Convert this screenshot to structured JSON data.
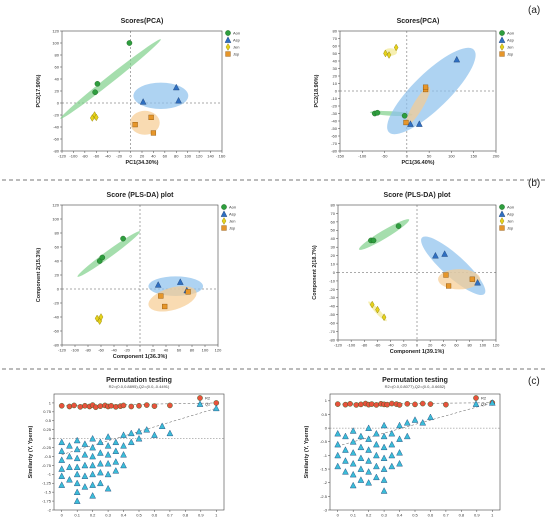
{
  "panel_labels": [
    "(a)",
    "(b)",
    "(c)"
  ],
  "colors": {
    "Aon": "#2e9e3e",
    "Asp": "#2f6fc1",
    "Jen": "#e6d21a",
    "Jsp": "#e6962a",
    "R2": "#e8523c",
    "Q2": "#3bbcd8",
    "ellipse_Aon": "#7fd08a",
    "ellipse_Asp": "#8cc0ec",
    "ellipse_Jen": "#f2e890",
    "ellipse_Jsp": "#f6cc92",
    "divider": "#777777"
  },
  "chart_data": [
    {
      "type": "scatter",
      "title": "Scores(PCA)",
      "xlabel": "PC1(34.30%)",
      "ylabel": "PC2(17.90%)",
      "xlim": [
        -120,
        160
      ],
      "ylim": [
        -80,
        120
      ],
      "xticks": [
        -120,
        -100,
        -80,
        -60,
        -40,
        -20,
        0,
        20,
        40,
        60,
        80,
        100,
        120,
        140,
        160
      ],
      "yticks": [
        -80,
        -60,
        -40,
        -20,
        0,
        20,
        40,
        60,
        80,
        100,
        120
      ],
      "legend": "top-right",
      "series": [
        {
          "name": "Aon",
          "marker": "circle",
          "points": [
            [
              -62,
              18
            ],
            [
              -58,
              32
            ],
            [
              -2,
              100
            ]
          ]
        },
        {
          "name": "Asp",
          "marker": "triangle",
          "points": [
            [
              22,
              2
            ],
            [
              80,
              26
            ],
            [
              84,
              4
            ]
          ]
        },
        {
          "name": "Jen",
          "marker": "diamond",
          "points": [
            [
              -67,
              -25
            ],
            [
              -63,
              -20
            ],
            [
              -60,
              -24
            ]
          ]
        },
        {
          "name": "Jsp",
          "marker": "square",
          "points": [
            [
              8,
              -36
            ],
            [
              36,
              -24
            ],
            [
              40,
              -50
            ]
          ]
        }
      ]
    },
    {
      "type": "scatter",
      "title": "Scores(PCA)",
      "xlabel": "PC1(36.40%)",
      "ylabel": "PC2(18.90%)",
      "xlim": [
        -150,
        200
      ],
      "ylim": [
        -80,
        80
      ],
      "xticks": [
        -150,
        -100,
        -50,
        0,
        50,
        100,
        150,
        200
      ],
      "yticks": [
        -80,
        -70,
        -60,
        -50,
        -40,
        -30,
        -20,
        -10,
        0,
        10,
        20,
        30,
        40,
        50,
        60,
        70,
        80
      ],
      "legend": "top-right",
      "series": [
        {
          "name": "Aon",
          "marker": "circle",
          "points": [
            [
              -72,
              -30
            ],
            [
              -66,
              -29
            ],
            [
              -5,
              -33
            ]
          ]
        },
        {
          "name": "Asp",
          "marker": "triangle",
          "points": [
            [
              8,
              -44
            ],
            [
              28,
              -44
            ],
            [
              112,
              42
            ]
          ]
        },
        {
          "name": "Jen",
          "marker": "diamond",
          "points": [
            [
              -48,
              50
            ],
            [
              -40,
              48
            ],
            [
              -24,
              58
            ]
          ]
        },
        {
          "name": "Jsp",
          "marker": "square",
          "points": [
            [
              -2,
              -42
            ],
            [
              42,
              2
            ],
            [
              42,
              5
            ]
          ]
        }
      ]
    },
    {
      "type": "scatter",
      "title": "Score (PLS-DA) plot",
      "xlabel": "Component 1(36.3%)",
      "ylabel": "Component 2(15.3%)",
      "xlim": [
        -120,
        120
      ],
      "ylim": [
        -80,
        120
      ],
      "xticks": [
        -120,
        -100,
        -80,
        -60,
        -40,
        -20,
        0,
        20,
        40,
        60,
        80,
        100,
        120
      ],
      "yticks": [
        -80,
        -60,
        -40,
        -20,
        0,
        20,
        40,
        60,
        80,
        100,
        120
      ],
      "legend": "top-right",
      "series": [
        {
          "name": "Aon",
          "marker": "circle",
          "points": [
            [
              -62,
              40
            ],
            [
              -58,
              45
            ],
            [
              -26,
              72
            ]
          ]
        },
        {
          "name": "Asp",
          "marker": "triangle",
          "points": [
            [
              28,
              6
            ],
            [
              62,
              10
            ],
            [
              72,
              -2
            ]
          ]
        },
        {
          "name": "Jen",
          "marker": "diamond",
          "points": [
            [
              -66,
              -42
            ],
            [
              -62,
              -46
            ],
            [
              -60,
              -40
            ]
          ]
        },
        {
          "name": "Jsp",
          "marker": "square",
          "points": [
            [
              32,
              -10
            ],
            [
              38,
              -25
            ],
            [
              74,
              -4
            ]
          ]
        }
      ]
    },
    {
      "type": "scatter",
      "title": "Score (PLS-DA) plot",
      "xlabel": "Component 1(39.1%)",
      "ylabel": "Component 2(18.7%)",
      "xlim": [
        -120,
        120
      ],
      "ylim": [
        -80,
        80
      ],
      "xticks": [
        -120,
        -100,
        -80,
        -60,
        -40,
        -20,
        0,
        20,
        40,
        60,
        80,
        100,
        120
      ],
      "yticks": [
        -80,
        -70,
        -60,
        -50,
        -40,
        -30,
        -20,
        -10,
        0,
        10,
        20,
        30,
        40,
        50,
        60,
        70,
        80
      ],
      "legend": "top-right",
      "series": [
        {
          "name": "Aon",
          "marker": "circle",
          "points": [
            [
              -70,
              38
            ],
            [
              -66,
              38
            ],
            [
              -28,
              55
            ]
          ]
        },
        {
          "name": "Asp",
          "marker": "triangle",
          "points": [
            [
              28,
              20
            ],
            [
              42,
              22
            ],
            [
              92,
              -12
            ]
          ]
        },
        {
          "name": "Jen",
          "marker": "diamond",
          "points": [
            [
              -68,
              -38
            ],
            [
              -60,
              -44
            ],
            [
              -50,
              -53
            ]
          ]
        },
        {
          "name": "Jsp",
          "marker": "square",
          "points": [
            [
              44,
              -3
            ],
            [
              48,
              -16
            ],
            [
              84,
              -8
            ]
          ]
        }
      ]
    },
    {
      "type": "scatter",
      "title": "Permutation testing",
      "subtitle": "R2=(0.0,0.8895),Q2=(0.0,-0.4491)",
      "ylabel": "Similarity (Y, Yperm)",
      "xlim": [
        -0.05,
        1.05
      ],
      "ylim": [
        -2.0,
        1.25
      ],
      "xticks": [
        0,
        0.1,
        0.2,
        0.3,
        0.4,
        0.5,
        0.6,
        0.7,
        0.8,
        0.9,
        1
      ],
      "yticks": [
        -2,
        -1.75,
        -1.5,
        -1.25,
        -1,
        -0.75,
        -0.5,
        -0.25,
        0,
        0.25,
        0.5,
        0.75,
        1
      ],
      "legend": "top-right",
      "series": [
        {
          "name": "R2",
          "marker": "circle",
          "x": [
            0,
            0.05,
            0.08,
            0.12,
            0.15,
            0.18,
            0.2,
            0.22,
            0.25,
            0.28,
            0.3,
            0.32,
            0.35,
            0.38,
            0.4,
            0.45,
            0.5,
            0.55,
            0.6,
            0.7,
            1
          ],
          "y": [
            0.92,
            0.9,
            0.93,
            0.89,
            0.92,
            0.9,
            0.94,
            0.88,
            0.91,
            0.93,
            0.9,
            0.92,
            0.89,
            0.91,
            0.93,
            0.9,
            0.92,
            0.94,
            0.91,
            0.93,
            1.0
          ]
        },
        {
          "name": "Q2",
          "marker": "triangle",
          "x": [
            0,
            0,
            0,
            0,
            0,
            0,
            0.05,
            0.05,
            0.05,
            0.05,
            0.1,
            0.1,
            0.1,
            0.1,
            0.1,
            0.1,
            0.1,
            0.1,
            0.15,
            0.15,
            0.15,
            0.15,
            0.15,
            0.2,
            0.2,
            0.2,
            0.2,
            0.2,
            0.2,
            0.2,
            0.25,
            0.25,
            0.25,
            0.25,
            0.25,
            0.3,
            0.3,
            0.3,
            0.3,
            0.3,
            0.3,
            0.35,
            0.35,
            0.35,
            0.35,
            0.4,
            0.4,
            0.4,
            0.4,
            0.45,
            0.45,
            0.5,
            0.5,
            0.55,
            0.6,
            0.65,
            0.7,
            1
          ],
          "y": [
            -0.1,
            -0.35,
            -0.6,
            -0.85,
            -1.05,
            -1.3,
            -0.2,
            -0.5,
            -0.8,
            -1.15,
            -0.05,
            -0.3,
            -0.55,
            -0.8,
            -1.0,
            -1.25,
            -1.5,
            -1.75,
            -0.15,
            -0.45,
            -0.75,
            -1.05,
            -1.35,
            0.0,
            -0.25,
            -0.5,
            -0.75,
            -1.0,
            -1.3,
            -1.6,
            -0.1,
            -0.4,
            -0.7,
            -0.95,
            -1.25,
            0.05,
            -0.2,
            -0.45,
            -0.7,
            -1.0,
            -1.4,
            -0.1,
            -0.35,
            -0.65,
            -0.9,
            0.1,
            -0.2,
            -0.45,
            -0.75,
            0.15,
            -0.1,
            0.2,
            0.0,
            0.25,
            0.1,
            0.35,
            0.15,
            0.85
          ]
        }
      ]
    },
    {
      "type": "scatter",
      "title": "Permutation testing",
      "subtitle": "R2=(0.0,0.8077),Q2=(0.0,-0.6652)",
      "ylabel": "Similarity (Y, Yperm)",
      "xlim": [
        -0.05,
        1.05
      ],
      "ylim": [
        -3.0,
        1.25
      ],
      "xticks": [
        0,
        0.1,
        0.2,
        0.3,
        0.4,
        0.5,
        0.6,
        0.7,
        0.8,
        0.9,
        1
      ],
      "yticks": [
        -3,
        -2.5,
        -2,
        -1.5,
        -1,
        -0.5,
        0,
        0.5,
        1
      ],
      "legend": "top-right",
      "series": [
        {
          "name": "R2",
          "marker": "circle",
          "x": [
            0,
            0.05,
            0.08,
            0.12,
            0.15,
            0.18,
            0.2,
            0.22,
            0.25,
            0.28,
            0.3,
            0.32,
            0.35,
            0.38,
            0.4,
            0.45,
            0.5,
            0.55,
            0.6,
            0.7,
            1
          ],
          "y": [
            0.88,
            0.86,
            0.89,
            0.85,
            0.87,
            0.9,
            0.86,
            0.88,
            0.85,
            0.89,
            0.87,
            0.86,
            0.9,
            0.88,
            0.85,
            0.89,
            0.87,
            0.9,
            0.88,
            0.86,
            0.93
          ]
        },
        {
          "name": "Q2",
          "marker": "triangle",
          "x": [
            0,
            0,
            0,
            0,
            0.05,
            0.05,
            0.05,
            0.05,
            0.1,
            0.1,
            0.1,
            0.1,
            0.1,
            0.1,
            0.15,
            0.15,
            0.15,
            0.15,
            0.15,
            0.2,
            0.2,
            0.2,
            0.2,
            0.2,
            0.2,
            0.25,
            0.25,
            0.25,
            0.25,
            0.25,
            0.3,
            0.3,
            0.3,
            0.3,
            0.3,
            0.3,
            0.3,
            0.35,
            0.35,
            0.35,
            0.35,
            0.4,
            0.4,
            0.4,
            0.4,
            0.45,
            0.45,
            0.5,
            0.55,
            0.6,
            1
          ],
          "y": [
            -0.2,
            -0.6,
            -1.0,
            -1.4,
            -0.3,
            -0.8,
            -1.2,
            -1.6,
            -0.1,
            -0.5,
            -0.9,
            -1.3,
            -1.7,
            -2.1,
            -0.3,
            -0.7,
            -1.1,
            -1.5,
            -1.9,
            0.0,
            -0.4,
            -0.8,
            -1.2,
            -1.6,
            -2.0,
            -0.2,
            -0.6,
            -1.0,
            -1.4,
            -1.8,
            0.1,
            -0.3,
            -0.7,
            -1.1,
            -1.5,
            -1.9,
            -2.3,
            -0.2,
            -0.6,
            -1.0,
            -1.4,
            0.1,
            -0.4,
            -0.9,
            -1.3,
            0.2,
            -0.3,
            0.3,
            0.2,
            0.4,
            0.93
          ]
        }
      ]
    }
  ]
}
